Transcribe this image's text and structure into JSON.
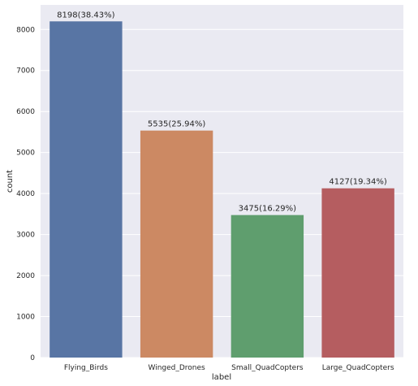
{
  "chart_data": {
    "type": "bar",
    "categories": [
      "Flying_Birds",
      "Winged_Drones",
      "Small_QuadCopters",
      "Large_QuadCopters"
    ],
    "values": [
      8198,
      5535,
      3475,
      4127
    ],
    "data_labels": [
      "8198(38.43%)",
      "5535(25.94%)",
      "3475(16.29%)",
      "4127(19.34%)"
    ],
    "colors": [
      "#5875a4",
      "#cc8963",
      "#5f9e6e",
      "#b55d60"
    ],
    "xlabel": "label",
    "ylabel": "count",
    "ylim": [
      0,
      8600
    ],
    "yticks": [
      0,
      1000,
      2000,
      3000,
      4000,
      5000,
      6000,
      7000,
      8000
    ],
    "grid": true,
    "background": "#eaeaf2",
    "grid_color": "#ffffff"
  }
}
